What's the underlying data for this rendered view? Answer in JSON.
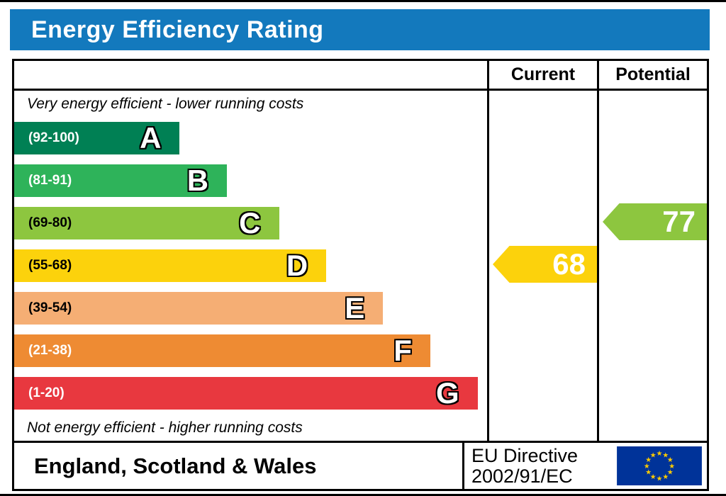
{
  "title": "Energy Efficiency Rating",
  "colors": {
    "banner": "#1379bd",
    "border": "#000000"
  },
  "columns": {
    "current": "Current",
    "potential": "Potential"
  },
  "top_note": "Very energy efficient - lower running costs",
  "bottom_note": "Not energy efficient - higher running costs",
  "footer": {
    "region": "England, Scotland & Wales",
    "directive_line1": "EU Directive",
    "directive_line2": "2002/91/EC",
    "eu_flag": {
      "field_color": "#003399",
      "star_color": "#ffcc00"
    }
  },
  "chart_data": {
    "type": "bar",
    "title": "Energy Efficiency Rating",
    "categories": [
      "A",
      "B",
      "C",
      "D",
      "E",
      "F",
      "G"
    ],
    "bands": [
      {
        "letter": "A",
        "range": "(92-100)",
        "min": 92,
        "max": 100,
        "color": "#008054",
        "text_color": "#ffffff",
        "width_pct": 35
      },
      {
        "letter": "B",
        "range": "(81-91)",
        "min": 81,
        "max": 91,
        "color": "#2eb35a",
        "text_color": "#ffffff",
        "width_pct": 45
      },
      {
        "letter": "C",
        "range": "(69-80)",
        "min": 69,
        "max": 80,
        "color": "#8dc63f",
        "text_color": "#000000",
        "width_pct": 56
      },
      {
        "letter": "D",
        "range": "(55-68)",
        "min": 55,
        "max": 68,
        "color": "#fcd20c",
        "text_color": "#000000",
        "width_pct": 66
      },
      {
        "letter": "E",
        "range": "(39-54)",
        "min": 39,
        "max": 54,
        "color": "#f5ae74",
        "text_color": "#000000",
        "width_pct": 78
      },
      {
        "letter": "F",
        "range": "(21-38)",
        "min": 21,
        "max": 38,
        "color": "#ee8b33",
        "text_color": "#ffffff",
        "width_pct": 88
      },
      {
        "letter": "G",
        "range": "(1-20)",
        "min": 1,
        "max": 20,
        "color": "#e8383f",
        "text_color": "#ffffff",
        "width_pct": 98
      }
    ],
    "current": {
      "label": "Current",
      "value": 68,
      "band": "D",
      "band_index": 3,
      "color": "#fcd20c"
    },
    "potential": {
      "label": "Potential",
      "value": 77,
      "band": "C",
      "band_index": 2,
      "color": "#8dc63f"
    }
  }
}
